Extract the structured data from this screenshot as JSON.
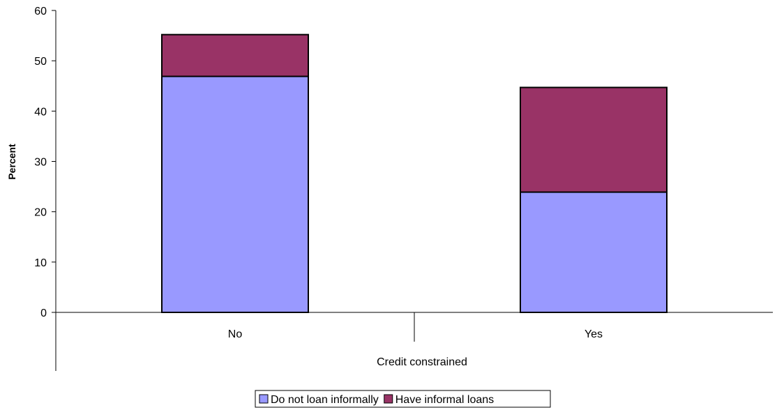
{
  "chart_data": {
    "type": "bar",
    "stacked": true,
    "categories": [
      "No",
      "Yes"
    ],
    "series": [
      {
        "name": "Do not loan informally",
        "values": [
          46.9,
          23.9
        ],
        "color": "#9999ff"
      },
      {
        "name": "Have informal loans",
        "values": [
          8.3,
          20.8
        ],
        "color": "#993366"
      }
    ],
    "xlabel": "Credit constrained",
    "ylabel": "Percent",
    "ylim": [
      0,
      60
    ],
    "yticks": [
      0,
      10,
      20,
      30,
      40,
      50,
      60
    ],
    "grid": false,
    "legend": "bottom"
  }
}
